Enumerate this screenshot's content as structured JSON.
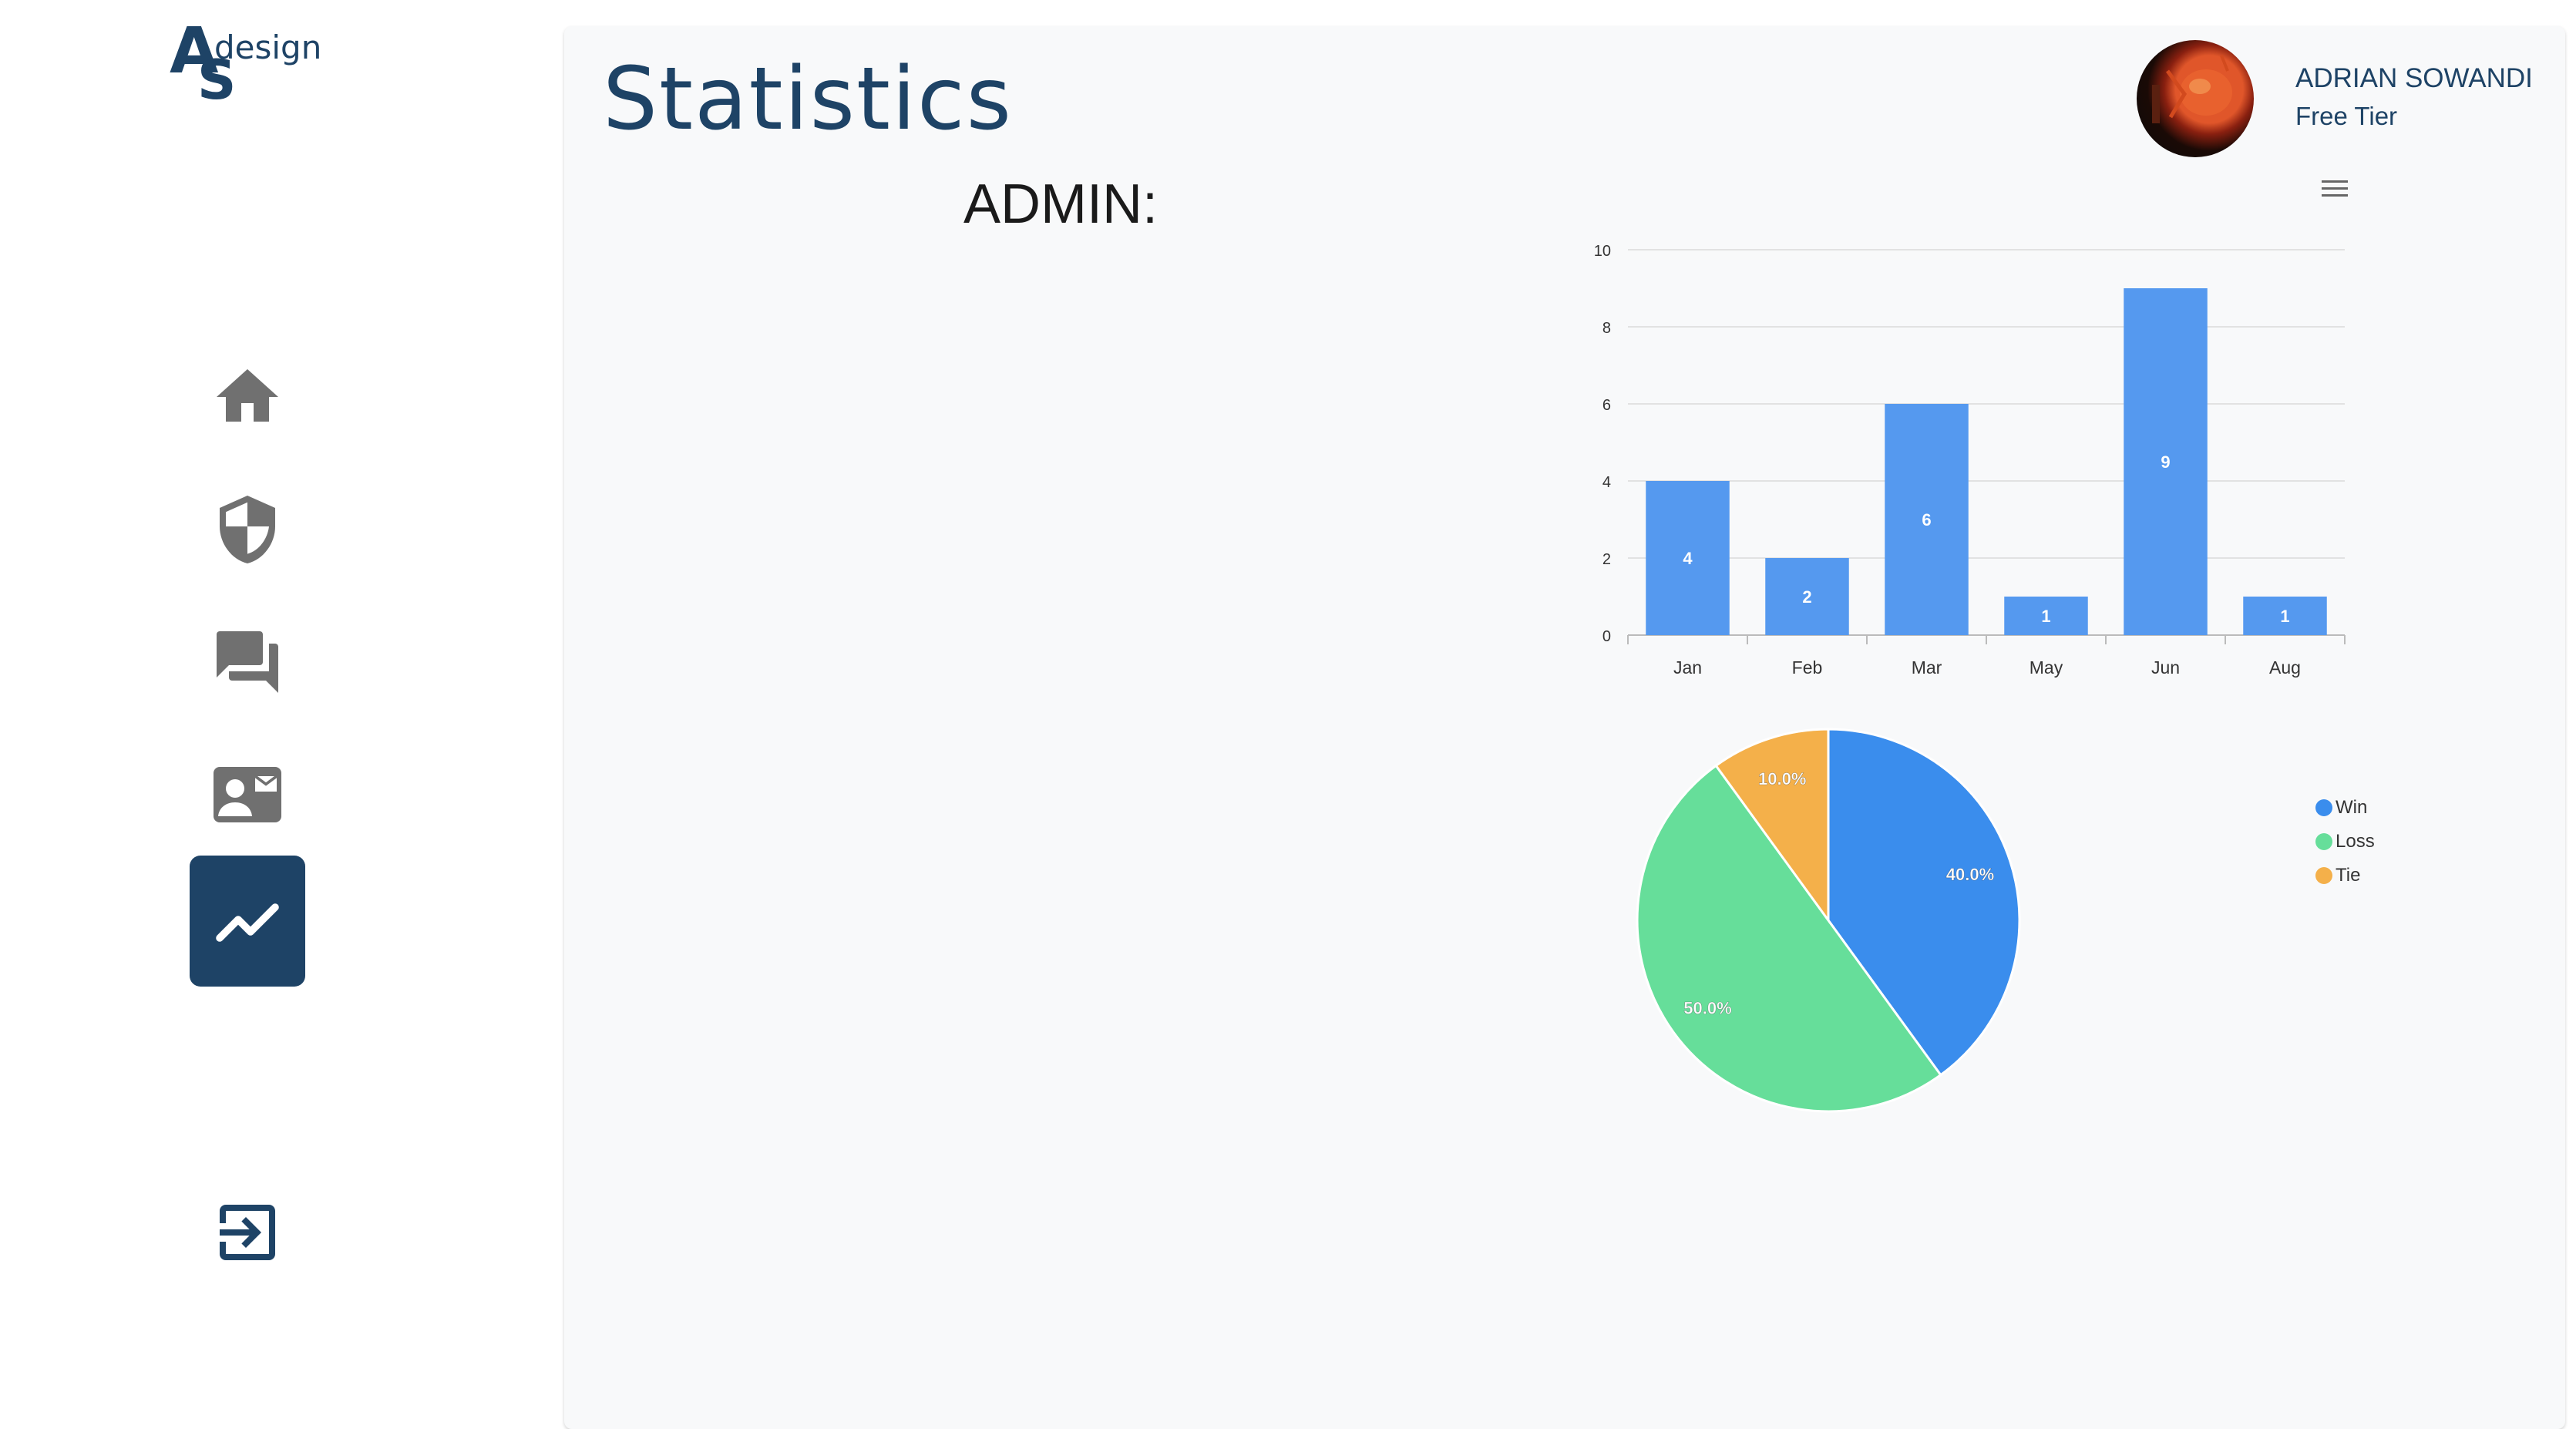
{
  "logo": {
    "letter_a": "A",
    "letter_s": "S",
    "word": "design"
  },
  "nav": [
    {
      "name": "home",
      "icon": "home-icon",
      "active": false
    },
    {
      "name": "security",
      "icon": "shield-icon",
      "active": false
    },
    {
      "name": "chat",
      "icon": "forum-icon",
      "active": false
    },
    {
      "name": "contact",
      "icon": "contact-card-icon",
      "active": false
    },
    {
      "name": "statistics",
      "icon": "trending-up-icon",
      "active": true
    }
  ],
  "logout": {
    "icon": "exit-icon"
  },
  "header": {
    "title": "Statistics"
  },
  "user": {
    "name": "ADRIAN SOWANDI",
    "tier": "Free Tier"
  },
  "admin_label": "ADMIN:",
  "colors": {
    "brand": "#1e4366",
    "bar": "#5599ef",
    "win": "#3a8ded",
    "loss": "#66de9a",
    "tie": "#f4b04a",
    "icon_gray": "#707070"
  },
  "chart_data": [
    {
      "type": "bar",
      "categories": [
        "Jan",
        "Feb",
        "Mar",
        "May",
        "Jun",
        "Aug"
      ],
      "values": [
        4,
        2,
        6,
        1,
        9,
        1
      ],
      "ylim": [
        0,
        10
      ],
      "yticks": [
        0,
        2,
        4,
        6,
        8,
        10
      ],
      "grid": true,
      "data_labels": true
    },
    {
      "type": "pie",
      "labels": [
        "Win",
        "Loss",
        "Tie"
      ],
      "values": [
        40.0,
        50.0,
        10.0
      ],
      "value_labels": [
        "40.0%",
        "50.0%",
        "10.0%"
      ],
      "legend": "right"
    }
  ]
}
